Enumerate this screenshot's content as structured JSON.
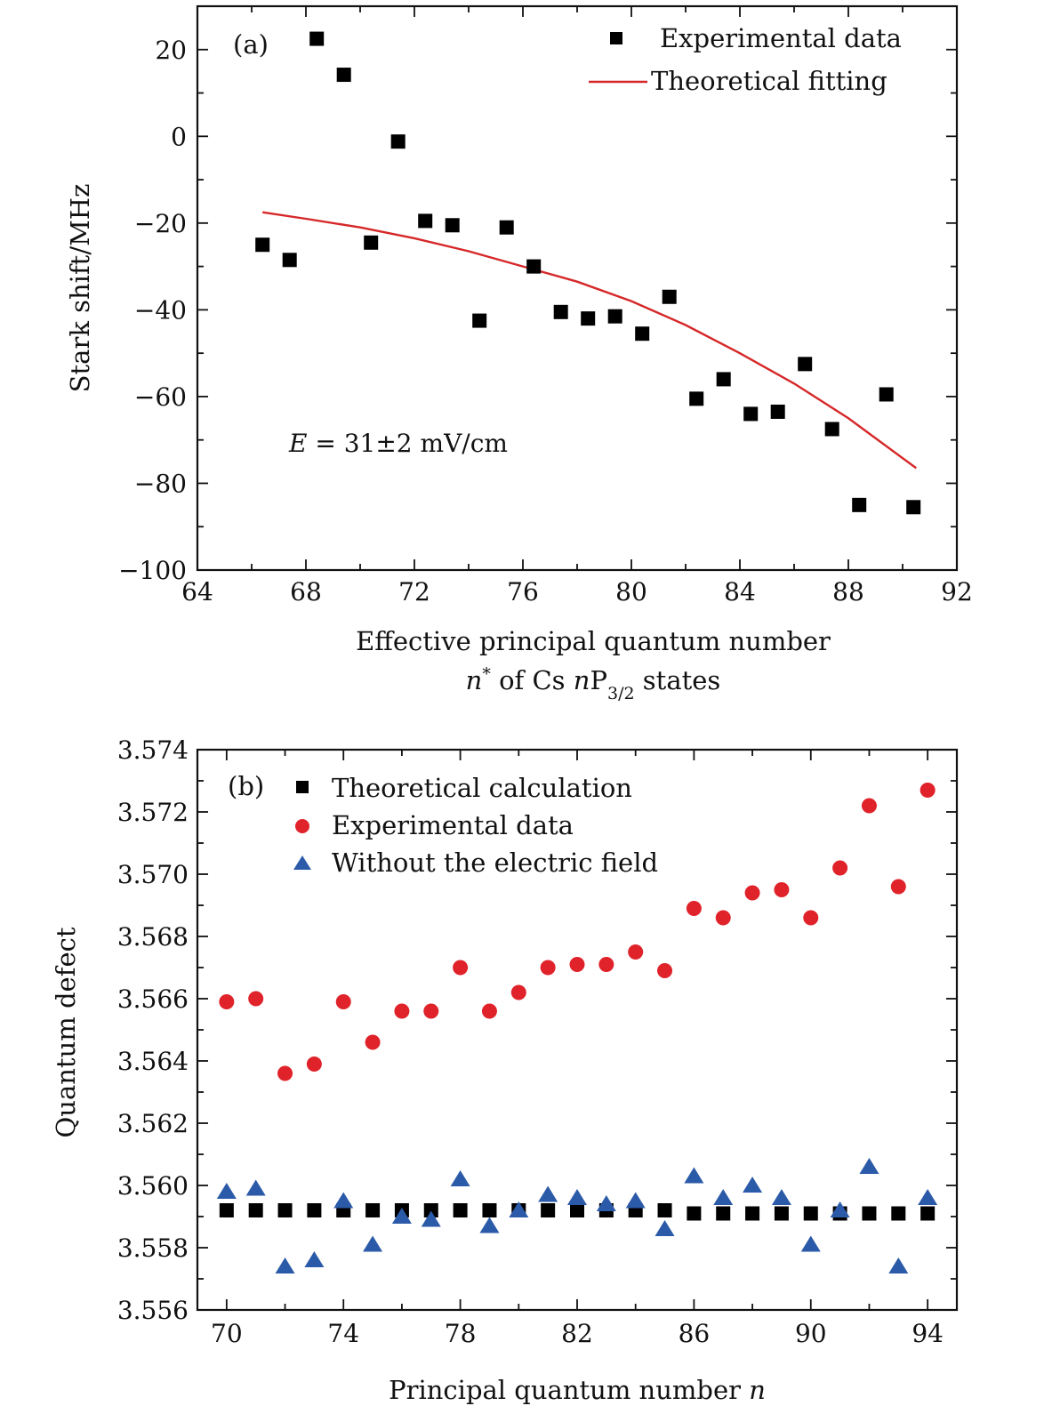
{
  "chart_data": [
    {
      "type": "scatter",
      "panel_label": "(a)",
      "xlabel_line1": "Effective principal quantum number",
      "xlabel_line2": {
        "n": "n",
        "star": "*",
        "of_cs": " of Cs ",
        "n2": "n",
        "P": "P",
        "sub": "3/2",
        "states": " states"
      },
      "ylabel": "Stark shift/MHz",
      "xlim": [
        64,
        92
      ],
      "ylim": [
        -100,
        30
      ],
      "xticks": [
        64,
        68,
        72,
        76,
        80,
        84,
        88,
        92
      ],
      "yticks": [
        -100,
        -80,
        -60,
        -40,
        -20,
        0,
        20
      ],
      "ytick_labels": [
        "−100",
        "−80",
        "−60",
        "−40",
        "−20",
        "0",
        "20"
      ],
      "annotation": {
        "E": "E",
        "rest": " = 31±2 mV/cm"
      },
      "legend": {
        "experimental": "Experimental data",
        "fitting": "Theoretical fitting",
        "position": "top-right"
      },
      "colors": {
        "experimental": "#000000",
        "fitting": "#d62728"
      },
      "series": [
        {
          "name": "Experimental data",
          "marker": "square",
          "points": [
            [
              66.4,
              -25
            ],
            [
              67.4,
              -28.5
            ],
            [
              68.4,
              22.5
            ],
            [
              69.4,
              14.2
            ],
            [
              70.4,
              -24.5
            ],
            [
              71.4,
              -1.2
            ],
            [
              72.4,
              -19.5
            ],
            [
              73.4,
              -20.5
            ],
            [
              74.4,
              -42.5
            ],
            [
              75.4,
              -21
            ],
            [
              76.4,
              -30
            ],
            [
              77.4,
              -40.5
            ],
            [
              78.4,
              -42
            ],
            [
              79.4,
              -41.5
            ],
            [
              80.4,
              -45.5
            ],
            [
              81.4,
              -37
            ],
            [
              82.4,
              -60.5
            ],
            [
              83.4,
              -56
            ],
            [
              84.4,
              -64
            ],
            [
              85.4,
              -63.5
            ],
            [
              86.4,
              -52.5
            ],
            [
              87.4,
              -67.5
            ],
            [
              88.4,
              -85
            ],
            [
              89.4,
              -59.5
            ],
            [
              90.4,
              -85.5
            ]
          ]
        },
        {
          "name": "Theoretical fitting",
          "line": true,
          "points": [
            [
              66.4,
              -17.5
            ],
            [
              68,
              -19
            ],
            [
              70,
              -21
            ],
            [
              72,
              -23.5
            ],
            [
              74,
              -26.5
            ],
            [
              76,
              -30
            ],
            [
              78,
              -33.5
            ],
            [
              80,
              -38
            ],
            [
              82,
              -43.5
            ],
            [
              84,
              -50
            ],
            [
              86,
              -57
            ],
            [
              88,
              -65
            ],
            [
              90.5,
              -76.5
            ]
          ]
        }
      ]
    },
    {
      "type": "scatter",
      "panel_label": "(b)",
      "xlabel": {
        "text": "Principal quantum number ",
        "italic": "n"
      },
      "ylabel": "Quantum defect",
      "xlim": [
        69,
        95
      ],
      "ylim": [
        3.556,
        3.574
      ],
      "xticks": [
        70,
        74,
        78,
        82,
        86,
        90,
        94
      ],
      "yticks": [
        3.556,
        3.558,
        3.56,
        3.562,
        3.564,
        3.566,
        3.568,
        3.57,
        3.572,
        3.574
      ],
      "ytick_labels": [
        "3.556",
        "3.558",
        "3.560",
        "3.562",
        "3.564",
        "3.566",
        "3.568",
        "3.570",
        "3.572",
        "3.574"
      ],
      "legend": {
        "theoretical": "Theoretical calculation",
        "experimental": "Experimental data",
        "without": "Without the electric field",
        "position": "top-left"
      },
      "colors": {
        "theoretical": "#000000",
        "experimental": "#d62728",
        "without": "#2b5aa8"
      },
      "x": [
        70,
        71,
        72,
        73,
        74,
        75,
        76,
        77,
        78,
        79,
        80,
        81,
        82,
        83,
        84,
        85,
        86,
        87,
        88,
        89,
        90,
        91,
        92,
        93,
        94
      ],
      "series": [
        {
          "name": "Theoretical calculation",
          "marker": "square",
          "values": [
            3.5592,
            3.5592,
            3.5592,
            3.5592,
            3.5592,
            3.5592,
            3.5592,
            3.5592,
            3.5592,
            3.5592,
            3.5592,
            3.5592,
            3.5592,
            3.5592,
            3.5592,
            3.5592,
            3.5591,
            3.5591,
            3.5591,
            3.5591,
            3.5591,
            3.5591,
            3.5591,
            3.5591,
            3.5591
          ]
        },
        {
          "name": "Experimental data",
          "marker": "circle",
          "values": [
            3.5659,
            3.566,
            3.5636,
            3.5639,
            3.5659,
            3.5646,
            3.5656,
            3.5656,
            3.567,
            3.5656,
            3.5662,
            3.567,
            3.5671,
            3.5671,
            3.5675,
            3.5669,
            3.5689,
            3.5686,
            3.5694,
            3.5695,
            3.5686,
            3.5702,
            3.5722,
            3.5696,
            3.5727
          ]
        },
        {
          "name": "Without the electric field",
          "marker": "triangle",
          "values": [
            3.5598,
            3.5599,
            3.5574,
            3.5576,
            3.5595,
            3.5581,
            3.559,
            3.5589,
            3.5602,
            3.5587,
            3.5592,
            3.5597,
            3.5596,
            3.5594,
            3.5595,
            3.5586,
            3.5603,
            3.5596,
            3.56,
            3.5596,
            3.5581,
            3.5592,
            3.5606,
            3.5574,
            3.5596
          ]
        }
      ]
    }
  ]
}
